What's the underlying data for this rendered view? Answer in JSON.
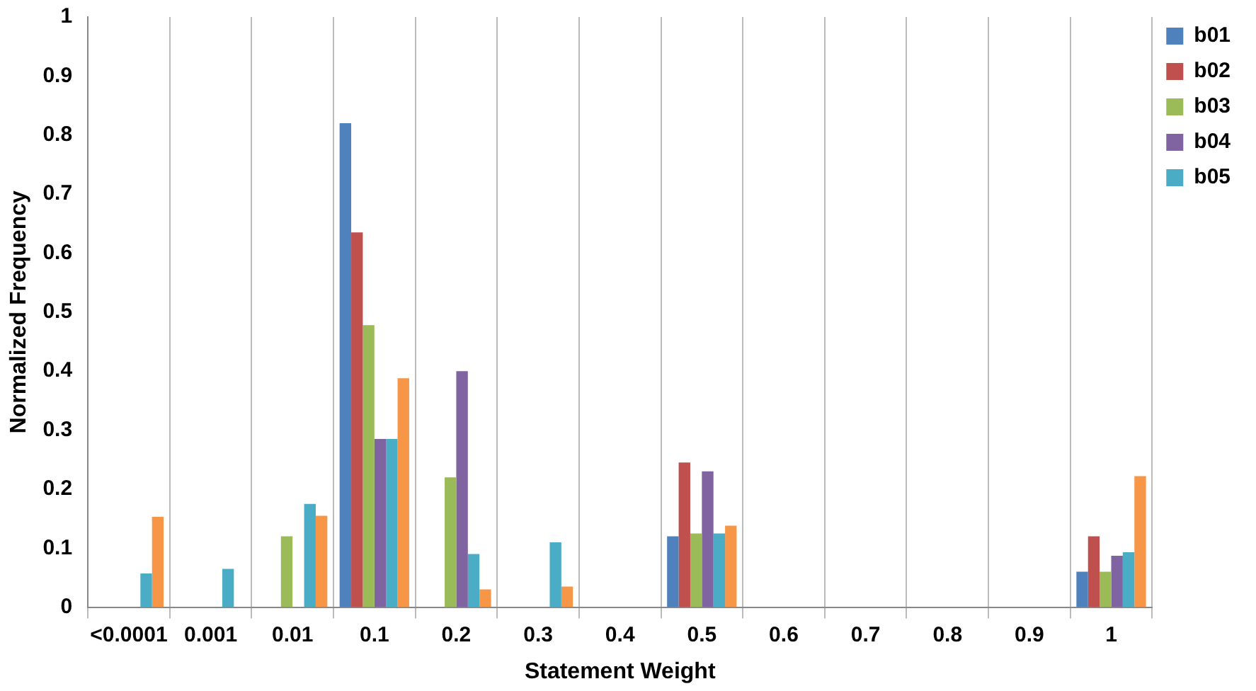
{
  "chart_data": {
    "type": "bar",
    "xlabel": "Statement Weight",
    "ylabel": "Normalized Frequency",
    "categories": [
      "<0.0001",
      "0.001",
      "0.01",
      "0.1",
      "0.2",
      "0.3",
      "0.4",
      "0.5",
      "0.6",
      "0.7",
      "0.8",
      "0.9",
      "1"
    ],
    "series": [
      {
        "name": "b01",
        "color": "#4f81bd",
        "values": [
          0,
          0,
          0,
          0.82,
          0,
          0,
          0,
          0.12,
          0,
          0,
          0,
          0,
          0.06
        ]
      },
      {
        "name": "b02",
        "color": "#c0504d",
        "values": [
          0,
          0,
          0,
          0.635,
          0,
          0,
          0,
          0.245,
          0,
          0,
          0,
          0,
          0.12
        ]
      },
      {
        "name": "b03",
        "color": "#9bbb59",
        "values": [
          0,
          0,
          0.12,
          0.478,
          0.22,
          0,
          0,
          0.125,
          0,
          0,
          0,
          0,
          0.06
        ]
      },
      {
        "name": "b04",
        "color": "#8064a2",
        "values": [
          0,
          0,
          0,
          0.285,
          0.4,
          0,
          0,
          0.23,
          0,
          0,
          0,
          0,
          0.087
        ]
      },
      {
        "name": "b05",
        "color": "#4bacc6",
        "values": [
          0.057,
          0.065,
          0.175,
          0.285,
          0.09,
          0.11,
          0,
          0.125,
          0,
          0,
          0,
          0,
          0.093
        ]
      },
      {
        "color": "#f79646",
        "values": [
          0.153,
          0,
          0.155,
          0.388,
          0.03,
          0.035,
          0,
          0.138,
          0,
          0,
          0,
          0,
          0.222
        ]
      }
    ],
    "ylim": [
      0,
      1
    ],
    "yticks": [
      0,
      0.1,
      0.2,
      0.3,
      0.4,
      0.5,
      0.6,
      0.7,
      0.8,
      0.9,
      1
    ],
    "grid": "x",
    "legend": "top right"
  }
}
